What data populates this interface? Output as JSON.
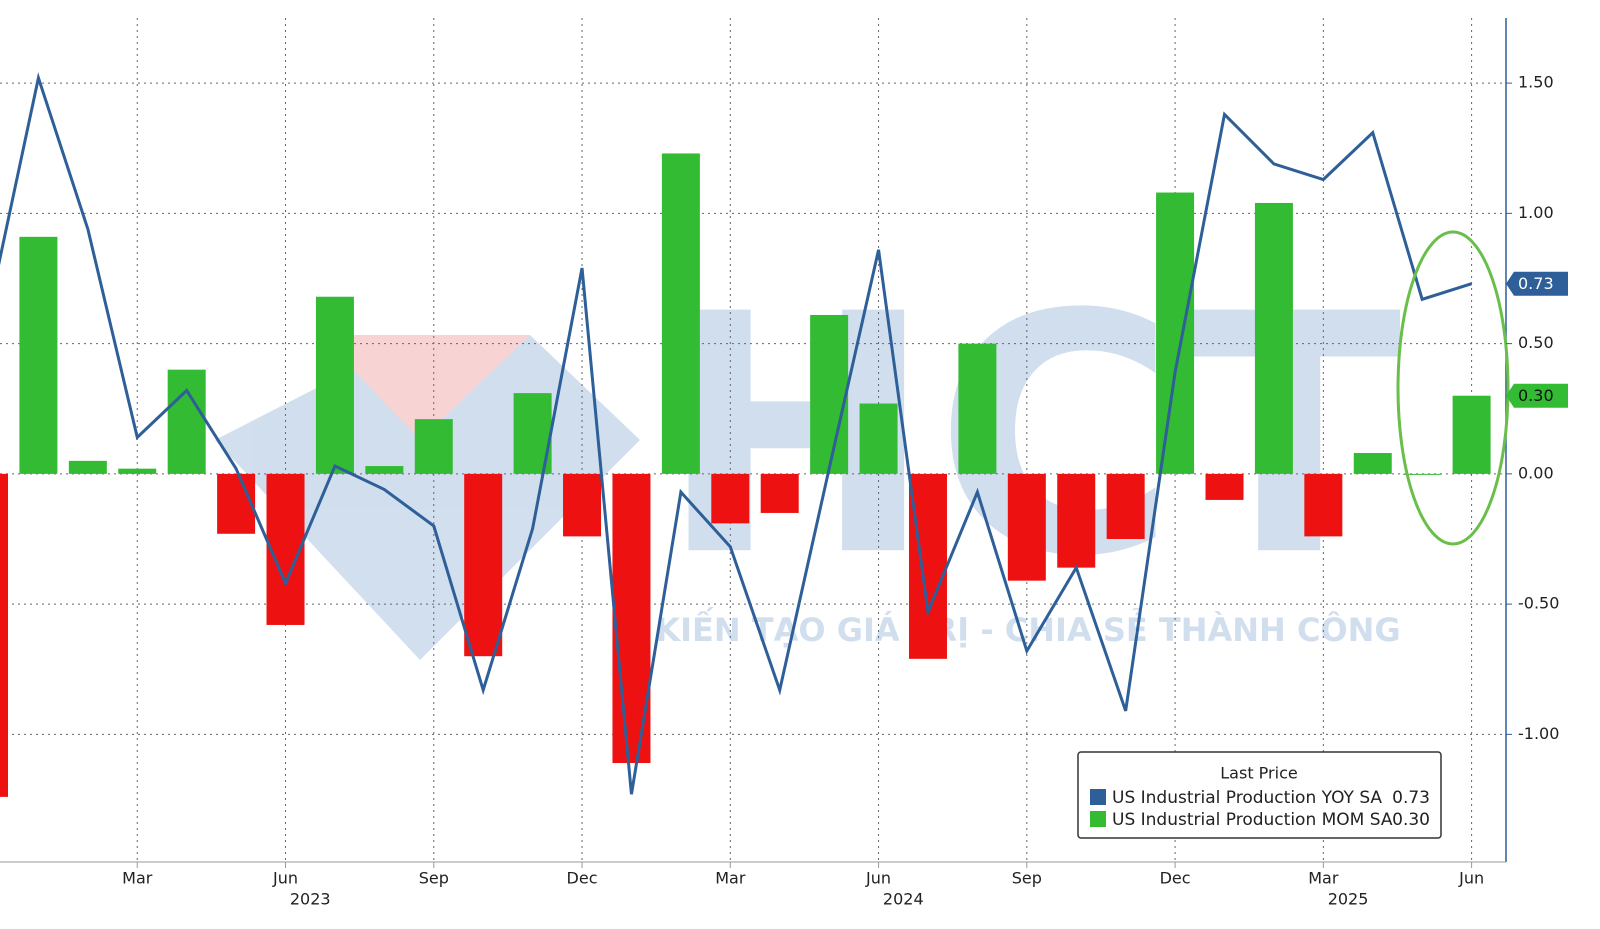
{
  "chart_data": {
    "type": "bar_line",
    "x": [
      "2022-12",
      "2023-01",
      "2023-02",
      "2023-03",
      "2023-04",
      "2023-05",
      "2023-06",
      "2023-07",
      "2023-08",
      "2023-09",
      "2023-10",
      "2023-11",
      "2023-12",
      "2024-01",
      "2024-02",
      "2024-03",
      "2024-04",
      "2024-05",
      "2024-06",
      "2024-07",
      "2024-08",
      "2024-09",
      "2024-10",
      "2024-11",
      "2024-12",
      "2025-01",
      "2025-02",
      "2025-03",
      "2025-04",
      "2025-05",
      "2025-06"
    ],
    "xticks": [
      {
        "value": "2023-03",
        "label": "Mar"
      },
      {
        "value": "2023-06",
        "label": "Jun"
      },
      {
        "value": "2023-09",
        "label": "Sep"
      },
      {
        "value": "2023-12",
        "label": "Dec"
      },
      {
        "value": "2024-03",
        "label": "Mar"
      },
      {
        "value": "2024-06",
        "label": "Jun"
      },
      {
        "value": "2024-09",
        "label": "Sep"
      },
      {
        "value": "2024-12",
        "label": "Dec"
      },
      {
        "value": "2025-03",
        "label": "Mar"
      },
      {
        "value": "2025-06",
        "label": "Jun"
      }
    ],
    "year_labels": [
      "2023",
      "2024",
      "2025"
    ],
    "ylim": [
      -1.49,
      1.75
    ],
    "yticks": [
      {
        "value": 1.5,
        "label": "1.50"
      },
      {
        "value": 1,
        "label": "1.00"
      },
      {
        "value": 0.5,
        "label": "0.50"
      },
      {
        "value": 0,
        "label": "0.00"
      },
      {
        "value": -0.5,
        "label": "-0.50"
      },
      {
        "value": -1,
        "label": "-1.00"
      }
    ],
    "grid": true,
    "legend_title": "Last Price",
    "legend_position": "lower right",
    "watermark": {
      "logo": "HCT",
      "slogan": "KIẾN TẠO GIÁ TRỊ - CHIA SẺ THÀNH CÔNG"
    },
    "series": [
      {
        "name": "US Industrial Production YOY SA",
        "type": "line",
        "color": "#2e5f98",
        "last_label": "0.73",
        "values": [
          0.63,
          1.52,
          0.94,
          0.14,
          0.32,
          0.02,
          -0.42,
          0.03,
          -0.06,
          -0.2,
          -0.83,
          -0.21,
          0.79,
          -1.23,
          -0.07,
          -0.28,
          -0.83,
          0.02,
          0.86,
          -0.53,
          -0.07,
          -0.68,
          -0.36,
          -0.91,
          0.39,
          1.38,
          1.19,
          1.13,
          1.31,
          0.67,
          0.73
        ]
      },
      {
        "name": "US Industrial Production MOM SA",
        "type": "bar",
        "color": "#33bb33",
        "negative_color": "#ee1111",
        "last_label": "0.30",
        "values": [
          -1.24,
          0.91,
          0.05,
          0.02,
          0.4,
          -0.23,
          -0.58,
          0.68,
          0.03,
          0.21,
          -0.7,
          0.31,
          -0.24,
          -1.11,
          1.23,
          -0.19,
          -0.15,
          0.61,
          0.27,
          -0.71,
          0.5,
          -0.41,
          -0.36,
          -0.25,
          1.08,
          -0.1,
          1.04,
          -0.24,
          0.08,
          0.0,
          0.3
        ]
      }
    ]
  }
}
